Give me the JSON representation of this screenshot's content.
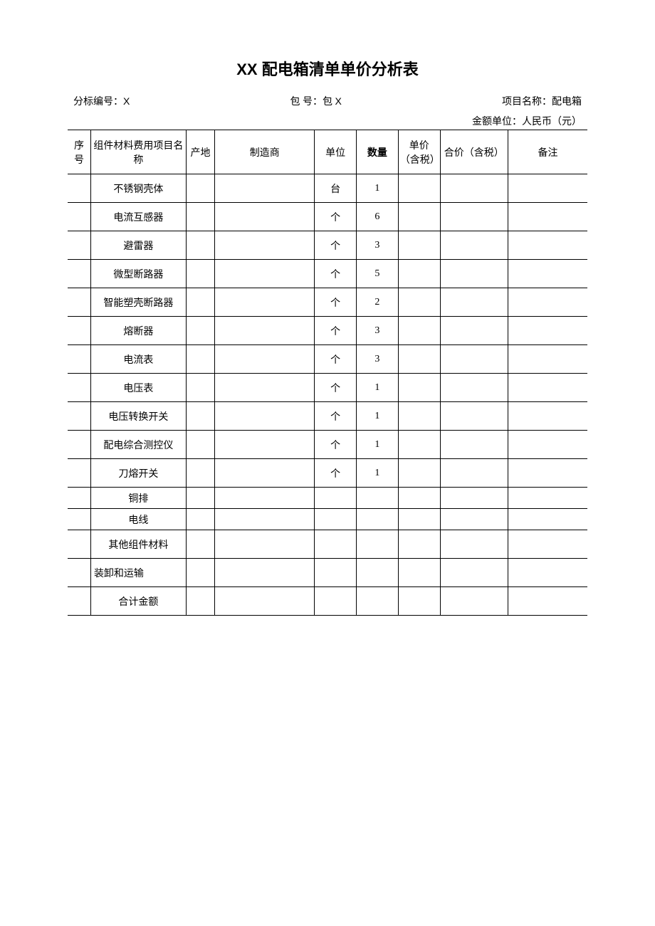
{
  "title_prefix": "XX",
  "title_main": " 配电箱清单单价分析表",
  "meta": {
    "bid_label": "分标编号：",
    "bid_value": "X",
    "pkg_label": "包  号：包 ",
    "pkg_value": "X",
    "proj_label": "项目名称：配电箱"
  },
  "currency_label": "金额单位：人民币（元）",
  "columns": [
    "序号",
    "组件材料费用项目名称",
    "产地",
    "制造商",
    "单位",
    "数量",
    "单价（含税）",
    "合价（含税）",
    "备注"
  ],
  "rows": [
    {
      "seq": "",
      "name": "不锈钢壳体",
      "origin": "",
      "mfr": "",
      "unit": "台",
      "qty": "1",
      "price": "",
      "total": "",
      "remark": "",
      "height": "normal",
      "align": "center"
    },
    {
      "seq": "",
      "name": "电流互感器",
      "origin": "",
      "mfr": "",
      "unit": "个",
      "qty": "6",
      "price": "",
      "total": "",
      "remark": "",
      "height": "normal",
      "align": "center"
    },
    {
      "seq": "",
      "name": "避雷器",
      "origin": "",
      "mfr": "",
      "unit": "个",
      "qty": "3",
      "price": "",
      "total": "",
      "remark": "",
      "height": "normal",
      "align": "center"
    },
    {
      "seq": "",
      "name": "微型断路器",
      "origin": "",
      "mfr": "",
      "unit": "个",
      "qty": "5",
      "price": "",
      "total": "",
      "remark": "",
      "height": "normal",
      "align": "center"
    },
    {
      "seq": "",
      "name": "智能塑壳断路器",
      "origin": "",
      "mfr": "",
      "unit": "个",
      "qty": "2",
      "price": "",
      "total": "",
      "remark": "",
      "height": "normal",
      "align": "center"
    },
    {
      "seq": "",
      "name": "熔断器",
      "origin": "",
      "mfr": "",
      "unit": "个",
      "qty": "3",
      "price": "",
      "total": "",
      "remark": "",
      "height": "normal",
      "align": "center"
    },
    {
      "seq": "",
      "name": "电流表",
      "origin": "",
      "mfr": "",
      "unit": "个",
      "qty": "3",
      "price": "",
      "total": "",
      "remark": "",
      "height": "normal",
      "align": "center"
    },
    {
      "seq": "",
      "name": "电压表",
      "origin": "",
      "mfr": "",
      "unit": "个",
      "qty": "1",
      "price": "",
      "total": "",
      "remark": "",
      "height": "normal",
      "align": "center"
    },
    {
      "seq": "",
      "name": "电压转换开关",
      "origin": "",
      "mfr": "",
      "unit": "个",
      "qty": "1",
      "price": "",
      "total": "",
      "remark": "",
      "height": "normal",
      "align": "center"
    },
    {
      "seq": "",
      "name": "配电综合测控仪",
      "origin": "",
      "mfr": "",
      "unit": "个",
      "qty": "1",
      "price": "",
      "total": "",
      "remark": "",
      "height": "normal",
      "align": "center"
    },
    {
      "seq": "",
      "name": "刀熔开关",
      "origin": "",
      "mfr": "",
      "unit": "个",
      "qty": "1",
      "price": "",
      "total": "",
      "remark": "",
      "height": "normal",
      "align": "center"
    },
    {
      "seq": "",
      "name": "铜排",
      "origin": "",
      "mfr": "",
      "unit": "",
      "qty": "",
      "price": "",
      "total": "",
      "remark": "",
      "height": "small",
      "align": "center"
    },
    {
      "seq": "",
      "name": "电线",
      "origin": "",
      "mfr": "",
      "unit": "",
      "qty": "",
      "price": "",
      "total": "",
      "remark": "",
      "height": "small",
      "align": "center"
    },
    {
      "seq": "",
      "name": "其他组件材料",
      "origin": "",
      "mfr": "",
      "unit": "",
      "qty": "",
      "price": "",
      "total": "",
      "remark": "",
      "height": "normal",
      "align": "center"
    },
    {
      "seq": "",
      "name": "装卸和运输",
      "origin": "",
      "mfr": "",
      "unit": "",
      "qty": "",
      "price": "",
      "total": "",
      "remark": "",
      "height": "normal",
      "align": "left"
    },
    {
      "seq": "",
      "name": "合计金额",
      "origin": "",
      "mfr": "",
      "unit": "",
      "qty": "",
      "price": "",
      "total": "",
      "remark": "",
      "height": "normal",
      "align": "center"
    }
  ]
}
